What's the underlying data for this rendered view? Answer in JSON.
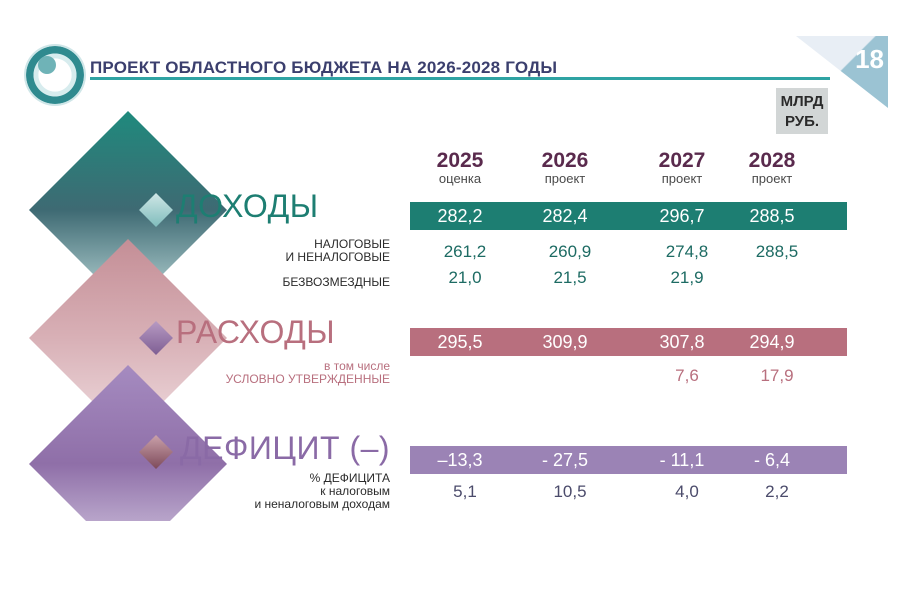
{
  "header": {
    "title": "ПРОЕКТ ОБЛАСТНОГО БЮДЖЕТА НА 2026-2028 ГОДЫ",
    "page_number": "18",
    "unit_line1": "МЛРД",
    "unit_line2": "РУБ."
  },
  "years": [
    {
      "year": "2025",
      "status": "оценка"
    },
    {
      "year": "2026",
      "status": "проект"
    },
    {
      "year": "2027",
      "status": "проект"
    },
    {
      "year": "2028",
      "status": "проект"
    }
  ],
  "income": {
    "label": "ДОХОДЫ",
    "total": [
      "282,2",
      "282,4",
      "296,7",
      "288,5"
    ],
    "tax_label_1": "НАЛОГОВЫЕ",
    "tax_label_2": "И НЕНАЛОГОВЫЕ",
    "tax": [
      "261,2",
      "260,9",
      "274,8",
      "288,5"
    ],
    "grants_label": "БЕЗВОЗМЕЗДНЫЕ",
    "grants": [
      "21,0",
      "21,5",
      "21,9",
      ""
    ]
  },
  "expenses": {
    "label": "РАСХОДЫ",
    "total": [
      "295,5",
      "309,9",
      "307,8",
      "294,9"
    ],
    "sub_label_1": "в том числе",
    "sub_label_2": "УСЛОВНО УТВЕРЖДЕННЫЕ",
    "conditional": [
      "",
      "",
      "7,6",
      "17,9"
    ]
  },
  "deficit": {
    "label": "ДЕФИЦИТ (–)",
    "total": [
      "–13,3",
      "- 27,5",
      "- 11,1",
      "- 6,4"
    ],
    "pct_label_1": "% ДЕФИЦИТА",
    "pct_label_2": "к налоговым",
    "pct_label_3": "и неналоговым доходам",
    "pct": [
      "5,1",
      "10,5",
      "4,0",
      "2,2"
    ]
  },
  "colors": {
    "income": "#1d7e72",
    "expenses": "#b86f7e",
    "deficit": "#9b83b5"
  }
}
